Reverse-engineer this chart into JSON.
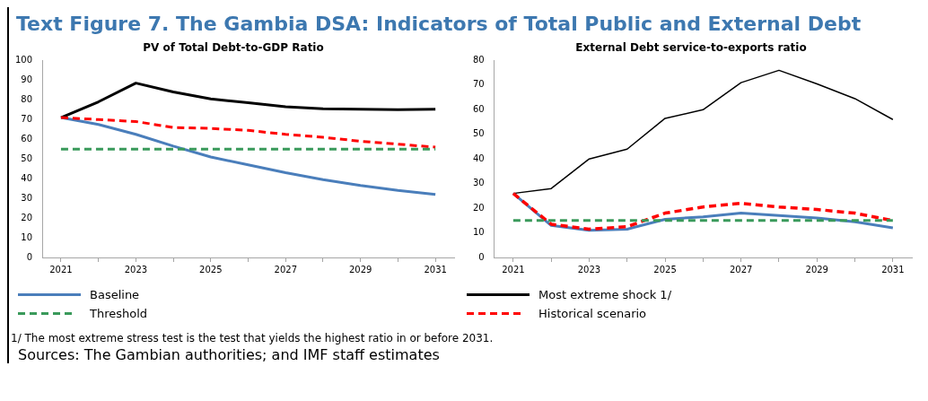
{
  "chart_data": [
    {
      "type": "line",
      "title": "Text Figure 7. The Gambia DSA: Indicators of Total Public and External Debt",
      "subtitle": "PV of Total Debt-to-GDP Ratio",
      "categories": [
        "2021",
        null,
        "2023",
        null,
        "2025",
        null,
        "2027",
        null,
        "2029",
        null,
        "2031"
      ],
      "series": [
        {
          "name": "Baseline",
          "color": "#4a7ebb",
          "line_style": "solid",
          "values": [
            71,
            67.5,
            62.5,
            56.5,
            51,
            47,
            43,
            39.5,
            36.5,
            34,
            32
          ]
        },
        {
          "name": "Most extreme shock 1/",
          "color": "#000000",
          "line_style": "solid",
          "values": [
            71,
            79,
            88.5,
            84,
            80.5,
            78.5,
            76.5,
            75.5,
            75.3,
            75,
            75.3
          ]
        },
        {
          "name": "Threshold",
          "color": "#3a9a5b",
          "line_style": "dashed",
          "values": [
            55,
            55,
            55,
            55,
            55,
            55,
            55,
            55,
            55,
            55,
            55
          ]
        },
        {
          "name": "Historical scenario",
          "color": "#ff0000",
          "line_style": "dashed",
          "values": [
            71,
            70,
            69,
            66,
            65.5,
            64.5,
            62.5,
            61,
            59,
            57.5,
            56
          ]
        }
      ],
      "ylim": [
        0,
        100
      ],
      "yticks": [
        0,
        10,
        20,
        30,
        40,
        50,
        60,
        70,
        80,
        90,
        100
      ],
      "legend": "bottom",
      "marker": "none",
      "annotations": [
        "1/ The most extreme stress test is the test that yields the highest ratio in or before 2031.",
        "Sources: The Gambian authorities; and IMF staff estimates"
      ]
    },
    {
      "type": "line",
      "title": "External Debt service-to-exports ratio",
      "categories": [
        "2021",
        null,
        "2023",
        null,
        "2025",
        null,
        "2027",
        null,
        "2029",
        null,
        "2031"
      ],
      "series": [
        {
          "color": "#4a7ebb",
          "line_style": "solid",
          "values": [
            26,
            13,
            11,
            11.5,
            15.5,
            16.5,
            18,
            17,
            16,
            14.5,
            12
          ]
        },
        {
          "color": "#000000",
          "line_style": "solid",
          "values": [
            26,
            28,
            40,
            44,
            56.5,
            60,
            71,
            76,
            70.5,
            64.5,
            56
          ]
        },
        {
          "color": "#3a9a5b",
          "line_style": "dashed",
          "values": [
            15,
            15,
            15,
            15,
            15,
            15,
            15,
            15,
            15,
            15,
            15
          ]
        },
        {
          "color": "#ff0000",
          "line_style": "dashed",
          "values": [
            26,
            13.5,
            11.5,
            12.5,
            18,
            20.5,
            22,
            20.5,
            19.5,
            18,
            15
          ]
        }
      ],
      "ylim": [
        0,
        80
      ],
      "yticks": [
        0,
        10,
        20,
        30,
        40,
        50,
        60,
        70,
        80
      ],
      "marker": "none"
    }
  ]
}
